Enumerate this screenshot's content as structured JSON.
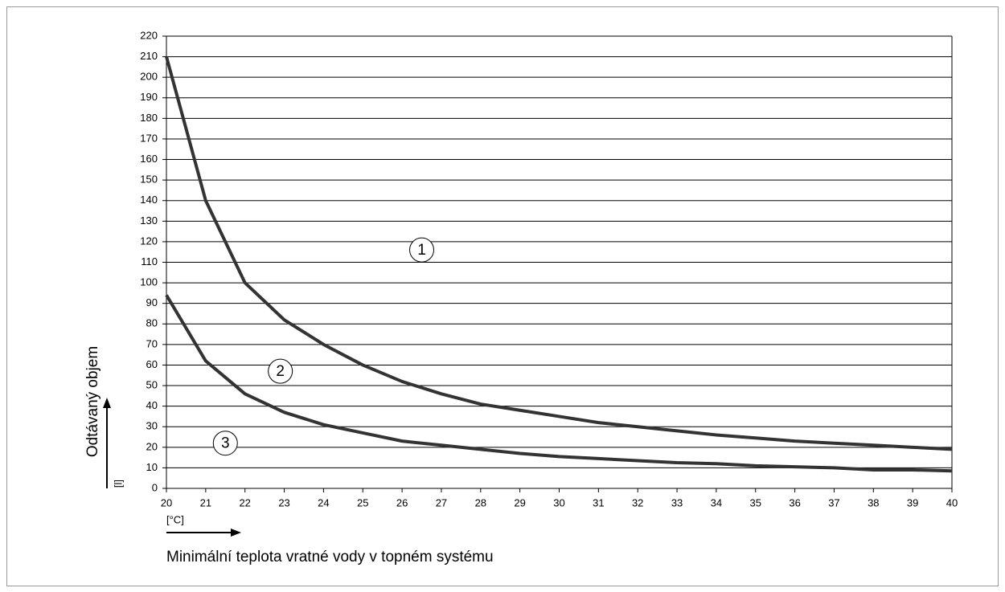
{
  "chart_data": {
    "type": "line",
    "x_label": "Minimální teplota vratné vody v topném systému",
    "x_unit": "[°C]",
    "y_label": "Odtávaný objem",
    "y_unit": "[l]",
    "x": [
      20,
      21,
      22,
      23,
      24,
      25,
      26,
      27,
      28,
      29,
      30,
      31,
      32,
      33,
      34,
      35,
      36,
      37,
      38,
      39,
      40
    ],
    "series": [
      {
        "color": "#333333",
        "values": [
          210,
          140,
          100,
          82,
          70,
          60,
          52,
          46,
          41,
          38,
          35,
          32,
          30,
          28,
          26,
          24.5,
          23,
          22,
          21,
          20,
          19
        ]
      },
      {
        "color": "#333333",
        "values": [
          94,
          62,
          46,
          37,
          31,
          27,
          23,
          21,
          19,
          17,
          15.5,
          14.5,
          13.5,
          12.5,
          12,
          11,
          10.5,
          10,
          9,
          9,
          8.5
        ]
      }
    ],
    "annotations": [
      {
        "text": "1",
        "x": 26.5,
        "y": 116
      },
      {
        "text": "2",
        "x": 22.9,
        "y": 57
      },
      {
        "text": "3",
        "x": 21.5,
        "y": 22
      }
    ],
    "xlim": [
      20,
      40
    ],
    "xticks": [
      20,
      21,
      22,
      23,
      24,
      25,
      26,
      27,
      28,
      29,
      30,
      31,
      32,
      33,
      34,
      35,
      36,
      37,
      38,
      39,
      40
    ],
    "ylim": [
      0,
      220
    ],
    "yticks": [
      0,
      10,
      20,
      30,
      40,
      50,
      60,
      70,
      80,
      90,
      100,
      110,
      120,
      130,
      140,
      150,
      160,
      170,
      180,
      190,
      200,
      210,
      220
    ],
    "grid": true
  }
}
